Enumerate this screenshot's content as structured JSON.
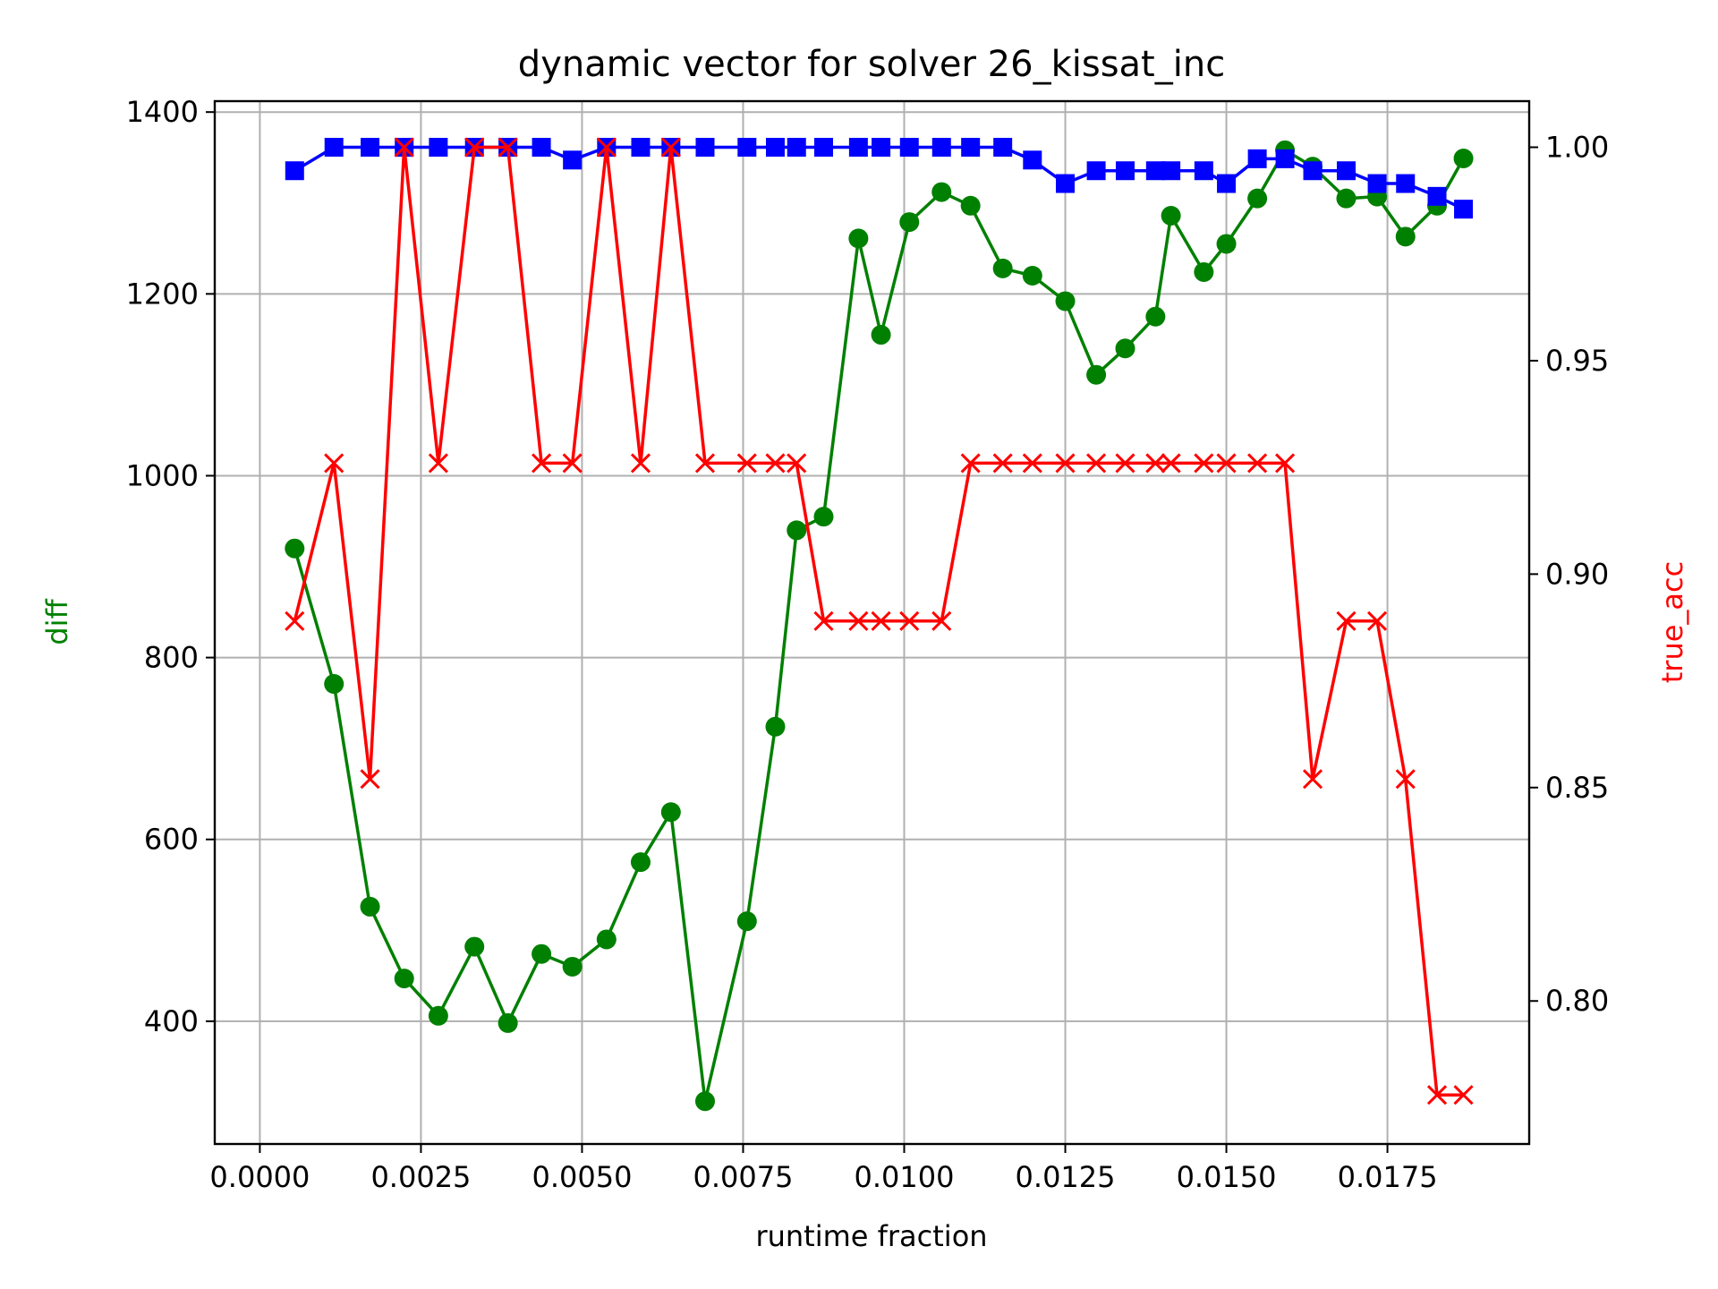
{
  "chart_data": {
    "type": "line",
    "title": "dynamic vector for solver 26_kissat_inc",
    "xlabel": "runtime fraction",
    "ylabel_left": "diff",
    "ylabel_right": "true_acc",
    "xlim": [
      -0.0007,
      0.0197
    ],
    "ylim_left": [
      265,
      1412
    ],
    "ylim_right": [
      0.7665,
      1.0108
    ],
    "x_ticks": [
      "0.0000",
      "0.0025",
      "0.0050",
      "0.0075",
      "0.0100",
      "0.0125",
      "0.0150",
      "0.0175"
    ],
    "x_tick_values": [
      0,
      0.0025,
      0.005,
      0.0075,
      0.01,
      0.0125,
      0.015,
      0.0175
    ],
    "y_left_ticks": [
      "400",
      "600",
      "800",
      "1000",
      "1200",
      "1400"
    ],
    "y_left_tick_values": [
      400,
      600,
      800,
      1000,
      1200,
      1400
    ],
    "y_right_ticks": [
      "0.80",
      "0.85",
      "0.90",
      "0.95",
      "1.00"
    ],
    "y_right_tick_values": [
      0.8,
      0.85,
      0.9,
      0.95,
      1.0
    ],
    "grid": true,
    "x": [
      0.00054,
      0.00115,
      0.00171,
      0.00224,
      0.00277,
      0.00333,
      0.00385,
      0.00437,
      0.00485,
      0.00538,
      0.00591,
      0.00638,
      0.00691,
      0.00756,
      0.008,
      0.00833,
      0.00875,
      0.00929,
      0.00964,
      0.01008,
      0.01058,
      0.01103,
      0.01153,
      0.01199,
      0.0125,
      0.01298,
      0.01343,
      0.0139,
      0.01414,
      0.01465,
      0.015,
      0.01548,
      0.01591,
      0.01634,
      0.01686,
      0.01734,
      0.01778,
      0.01827,
      0.01868
    ],
    "series": [
      {
        "axis": "left",
        "color": "#008000",
        "marker": "circle",
        "values": [
          920,
          771,
          526,
          447,
          406,
          482,
          398,
          474,
          460,
          490,
          575,
          630,
          312,
          510,
          724,
          940,
          955,
          1261,
          1155,
          1279,
          1312,
          1297,
          1228,
          1220,
          1192,
          1111,
          1140,
          1175,
          1286,
          1224,
          1255,
          1305,
          1358,
          1340,
          1305,
          1307,
          1263,
          1297,
          1349
        ]
      },
      {
        "axis": "right",
        "color": "#0000ff",
        "marker": "square",
        "values": [
          0.9945,
          1.0,
          1.0,
          1.0,
          1.0,
          1.0,
          1.0,
          1.0,
          0.997,
          1.0,
          1.0,
          1.0,
          1.0,
          1.0,
          1.0,
          1.0,
          1.0,
          1.0,
          1.0,
          1.0,
          1.0,
          1.0,
          1.0,
          0.997,
          0.9915,
          0.9945,
          0.9945,
          0.9945,
          0.9945,
          0.9945,
          0.9915,
          0.9973,
          0.9973,
          0.9945,
          0.9945,
          0.9915,
          0.9915,
          0.9885,
          0.9855
        ]
      },
      {
        "axis": "right",
        "color": "#ff0000",
        "marker": "x",
        "values": [
          0.889,
          0.926,
          0.852,
          1.0,
          0.926,
          1.0,
          1.0,
          0.926,
          0.926,
          1.0,
          0.926,
          1.0,
          0.926,
          0.926,
          0.926,
          0.926,
          0.889,
          0.889,
          0.889,
          0.889,
          0.889,
          0.926,
          0.926,
          0.926,
          0.926,
          0.926,
          0.926,
          0.926,
          0.926,
          0.926,
          0.926,
          0.926,
          0.926,
          0.852,
          0.889,
          0.889,
          0.852,
          0.778,
          0.778
        ]
      }
    ]
  }
}
